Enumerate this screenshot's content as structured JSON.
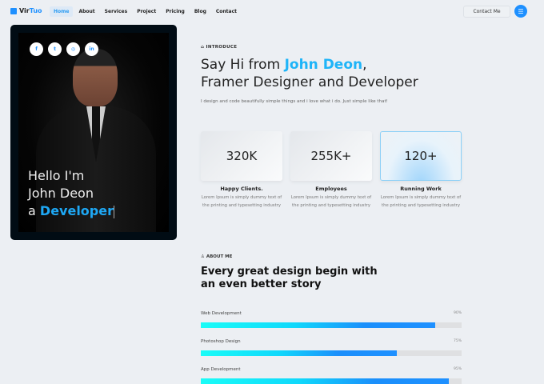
{
  "nav": {
    "logo_a": "Vir",
    "logo_b": "Tuo",
    "items": [
      "Home",
      "About",
      "Services",
      "Project",
      "Pricing",
      "Blog",
      "Contact"
    ],
    "active": "Home",
    "contact": "Contact Me",
    "menu_icon": "hamburger-icon"
  },
  "hero": {
    "socials": [
      "facebook-icon",
      "twitter-icon",
      "instagram-icon",
      "linkedin-icon"
    ],
    "social_glyphs": [
      "f",
      "t",
      "◎",
      "in"
    ],
    "line1": "Hello I'm",
    "line2": "John Deon",
    "line3a": "a",
    "line3b": "Developer"
  },
  "intro": {
    "label": "INTRODUCE",
    "title_a": "Say Hi from ",
    "title_name": "John Deon",
    "title_b": ",",
    "title_line2": "Framer Designer and Developer",
    "subtitle": "I design and code beautifully simple things and i love what i do. Just simple like that!"
  },
  "stats": [
    {
      "value": "320K",
      "title": "Happy Clients.",
      "desc": "Lorem Ipsum is simply dummy text of the printing and typesetting industry"
    },
    {
      "value": "255K+",
      "title": "Employees",
      "desc": "Lorem Ipsum is simply dummy text of the printing and typesetting industry"
    },
    {
      "value": "120+",
      "title": "Running Work",
      "desc": "Lorem Ipsum is simply dummy text of the printing and typesetting industry",
      "highlighted": true
    }
  ],
  "about": {
    "label": "ABOUT ME",
    "title_line1": "Every great design begin with",
    "title_line2": "an even better story"
  },
  "skills": [
    {
      "name": "Web Development",
      "percent": 90,
      "label": "90%"
    },
    {
      "name": "Photoshop Design",
      "percent": 75,
      "label": "75%"
    },
    {
      "name": "App Development",
      "percent": 95,
      "label": "95%"
    }
  ],
  "colors": {
    "accent": "#1e90ff",
    "gradient_start": "#1afcf7"
  }
}
